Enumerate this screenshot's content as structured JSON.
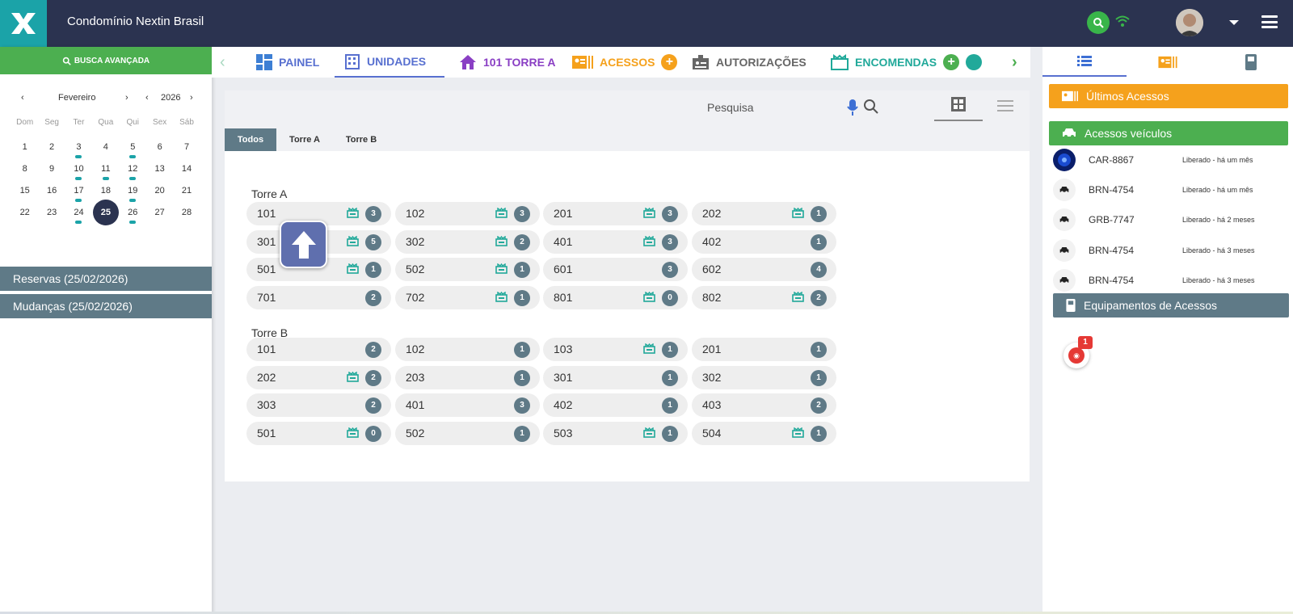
{
  "header": {
    "title": "Condomínio Nextin Brasil"
  },
  "sidebar": {
    "advanced_search": "BUSCA AVANÇADA",
    "calendar": {
      "month": "Fevereiro",
      "year": "2026",
      "weekdays": [
        "Dom",
        "Seg",
        "Ter",
        "Qua",
        "Qui",
        "Sex",
        "Sáb"
      ],
      "weeks": [
        [
          "1",
          "2",
          "3",
          "4",
          "5",
          "6",
          "7"
        ],
        [
          "8",
          "9",
          "10",
          "11",
          "12",
          "13",
          "14"
        ],
        [
          "15",
          "16",
          "17",
          "18",
          "19",
          "20",
          "21"
        ],
        [
          "22",
          "23",
          "24",
          "25",
          "26",
          "27",
          "28"
        ]
      ],
      "event_days": [
        "3",
        "5",
        "10",
        "11",
        "12",
        "17",
        "19",
        "24",
        "26"
      ],
      "today": "25"
    },
    "reservas": "Reservas (25/02/2026)",
    "mudancas": "Mudanças (25/02/2026)"
  },
  "tabs": {
    "painel": "PAINEL",
    "unidades": "UNIDADES",
    "torre": "101 TORRE A",
    "acessos": "ACESSOS",
    "autorizacoes": "AUTORIZAÇÕES",
    "encomendas": "ENCOMENDAS"
  },
  "main": {
    "search_placeholder": "Pesquisa",
    "filters": [
      "Todos",
      "Torre A",
      "Torre B"
    ],
    "towers": [
      {
        "name": "Torre A",
        "units": [
          {
            "num": "101",
            "count": "3",
            "pkg": true
          },
          {
            "num": "102",
            "count": "3",
            "pkg": true
          },
          {
            "num": "201",
            "count": "3",
            "pkg": true
          },
          {
            "num": "202",
            "count": "1",
            "pkg": true
          },
          {
            "num": "301",
            "count": "5",
            "pkg": true
          },
          {
            "num": "302",
            "count": "2",
            "pkg": true
          },
          {
            "num": "401",
            "count": "3",
            "pkg": true
          },
          {
            "num": "402",
            "count": "1",
            "pkg": false
          },
          {
            "num": "501",
            "count": "1",
            "pkg": true
          },
          {
            "num": "502",
            "count": "1",
            "pkg": true
          },
          {
            "num": "601",
            "count": "3",
            "pkg": false
          },
          {
            "num": "602",
            "count": "4",
            "pkg": false
          },
          {
            "num": "701",
            "count": "2",
            "pkg": false
          },
          {
            "num": "702",
            "count": "1",
            "pkg": true
          },
          {
            "num": "801",
            "count": "0",
            "pkg": true
          },
          {
            "num": "802",
            "count": "2",
            "pkg": true
          }
        ]
      },
      {
        "name": "Torre B",
        "units": [
          {
            "num": "101",
            "count": "2",
            "pkg": false
          },
          {
            "num": "102",
            "count": "1",
            "pkg": false
          },
          {
            "num": "103",
            "count": "1",
            "pkg": true
          },
          {
            "num": "201",
            "count": "1",
            "pkg": false
          },
          {
            "num": "202",
            "count": "2",
            "pkg": true
          },
          {
            "num": "203",
            "count": "1",
            "pkg": false
          },
          {
            "num": "301",
            "count": "1",
            "pkg": false
          },
          {
            "num": "302",
            "count": "1",
            "pkg": false
          },
          {
            "num": "303",
            "count": "2",
            "pkg": false
          },
          {
            "num": "401",
            "count": "3",
            "pkg": false
          },
          {
            "num": "402",
            "count": "1",
            "pkg": false
          },
          {
            "num": "403",
            "count": "2",
            "pkg": false
          },
          {
            "num": "501",
            "count": "0",
            "pkg": true
          },
          {
            "num": "502",
            "count": "1",
            "pkg": false
          },
          {
            "num": "503",
            "count": "1",
            "pkg": true
          },
          {
            "num": "504",
            "count": "1",
            "pkg": true
          }
        ]
      }
    ]
  },
  "right": {
    "ultimos_acessos": "Últimos Acessos",
    "acessos_veiculos": "Acessos veículos",
    "accesses": [
      {
        "plate": "CAR-8867",
        "status": "Liberado - há um mês"
      },
      {
        "plate": "BRN-4754",
        "status": "Liberado - há um mês"
      },
      {
        "plate": "GRB-7747",
        "status": "Liberado - há 2 meses"
      },
      {
        "plate": "BRN-4754",
        "status": "Liberado - há 3 meses"
      },
      {
        "plate": "BRN-4754",
        "status": "Liberado - há 3 meses"
      }
    ],
    "equipamentos": "Equipamentos de Acessos",
    "equip_badge": "1"
  },
  "colors": {
    "header": "#2b3350",
    "teal": "#1ba3a8",
    "green": "#4caf50",
    "orange": "#f5a11c",
    "slate": "#5f7a87"
  }
}
